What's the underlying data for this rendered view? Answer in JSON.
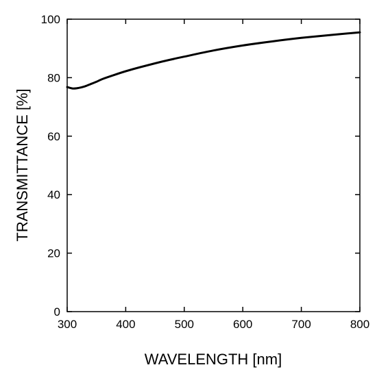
{
  "chart_data": {
    "type": "line",
    "title": "",
    "xlabel": "WAVELENGTH [nm]",
    "ylabel": "TRANSMITTANCE [%]",
    "xlim": [
      300,
      800
    ],
    "ylim": [
      0,
      100
    ],
    "xticks": [
      300,
      400,
      500,
      600,
      700,
      800
    ],
    "yticks": [
      0,
      20,
      40,
      60,
      80,
      100
    ],
    "x_tick_labels": [
      "300",
      "400",
      "500",
      "600",
      "700",
      "800"
    ],
    "y_tick_labels": [
      "0",
      "20",
      "40",
      "60",
      "80",
      "100"
    ],
    "grid": false,
    "legend": "none",
    "series": [
      {
        "x": [
          300,
          310,
          320,
          330,
          340,
          350,
          360,
          380,
          400,
          425,
          450,
          475,
          500,
          550,
          600,
          650,
          700,
          750,
          800
        ],
        "y": [
          76.8,
          76.3,
          76.5,
          77.0,
          77.8,
          78.6,
          79.5,
          80.9,
          82.2,
          83.6,
          84.9,
          86.1,
          87.2,
          89.3,
          91.0,
          92.4,
          93.6,
          94.6,
          95.5
        ]
      }
    ],
    "colors": {
      "line": "#000000",
      "axes": "#000000",
      "background": "#ffffff"
    }
  }
}
